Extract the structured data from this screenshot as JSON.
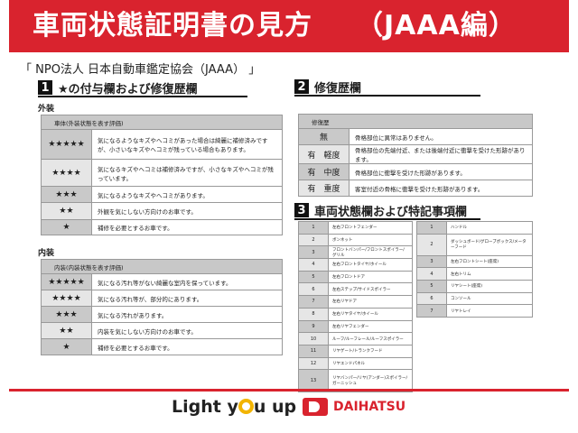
{
  "title": "車両状態証明書の見方",
  "title_sub": "（JAAA編）",
  "org": "「 NPO法人 日本自動車鑑定協会（JAAA） 」",
  "s1": {
    "num": "1",
    "heading": "★の付与欄および修復歴欄",
    "exterior": {
      "label": "外装",
      "header": "車体(外装状態を表す評価)",
      "rows": [
        [
          "★★★★★",
          "気になるようなキズやヘコミがあった場合は綺麗に補修済みですが、小さいなキズやヘコミが残っている場合もあります。"
        ],
        [
          "★★★★",
          "気になるキズやヘコミは補修済みですが、小さなキズやヘコミが残っています。"
        ],
        [
          "★★★",
          "気になるようなキズやヘコミがあります。"
        ],
        [
          "★★",
          "外観を気にしない方向けのお車です。"
        ],
        [
          "★",
          "補修を必要とするお車です。"
        ]
      ]
    },
    "interior": {
      "label": "内装",
      "header": "内装(内装状態を表す評価)",
      "rows": [
        [
          "★★★★★",
          "気になる汚れ等がない綺麗な室内を保っています。"
        ],
        [
          "★★★★",
          "気になる汚れ等が、部分的にあります。"
        ],
        [
          "★★★",
          "気になる汚れがあります。"
        ],
        [
          "★★",
          "内装を気にしない方向けのお車です。"
        ],
        [
          "★",
          "補修を必要とするお車です。"
        ]
      ]
    }
  },
  "s2": {
    "num": "2",
    "heading": "修復歴欄",
    "header": "修復歴",
    "rows": [
      [
        "無",
        "骨格部位に異常はありません。"
      ],
      [
        "有　軽度",
        "骨格部位の先端付近、または後端付近に衝撃を受けた形跡があります。"
      ],
      [
        "有　中度",
        "骨格部位に衝撃を受けた形跡があります。"
      ],
      [
        "有　重度",
        "客室付近の骨格に衝撃を受けた形跡があります。"
      ]
    ]
  },
  "s3": {
    "num": "3",
    "heading": "車両状態欄および特記事項欄",
    "exterior": [
      [
        "1",
        "左右フロントフェンダー"
      ],
      [
        "2",
        "ボンネット"
      ],
      [
        "3",
        "フロントバンパー/フロントスポイラー/グリル"
      ],
      [
        "4",
        "左右フロントタイヤ/ホイール"
      ],
      [
        "5",
        "左右フロントドア"
      ],
      [
        "6",
        "左右ステップ/サイドスポイラー"
      ],
      [
        "7",
        "左右リヤドア"
      ],
      [
        "8",
        "左右リヤタイヤ/ホイール"
      ],
      [
        "9",
        "左右リヤフェンダー"
      ],
      [
        "10",
        "ルーフ/ルーフレール/ルーフスポイラー"
      ],
      [
        "11",
        "リヤゲート/トランクフード"
      ],
      [
        "12",
        "リヤエンドパネル"
      ],
      [
        "13",
        "リヤバンパー/リヤ(アンダー)スポイラー/ガーニッシュ"
      ]
    ],
    "interior": [
      [
        "1",
        "ハンドル"
      ],
      [
        "2",
        "ダッシュボード/グローブボックス/メーターフード"
      ],
      [
        "3",
        "左右フロントシート(座席)"
      ],
      [
        "4",
        "左右トリム"
      ],
      [
        "5",
        "リヤシート(座席)"
      ],
      [
        "6",
        "コンソール"
      ],
      [
        "7",
        "リヤトレイ"
      ]
    ]
  },
  "footer": {
    "slogan_a": "Light y",
    "slogan_b": "u up",
    "brand": "DAIHATSU"
  },
  "colors": {
    "accent": "#d9232e"
  }
}
